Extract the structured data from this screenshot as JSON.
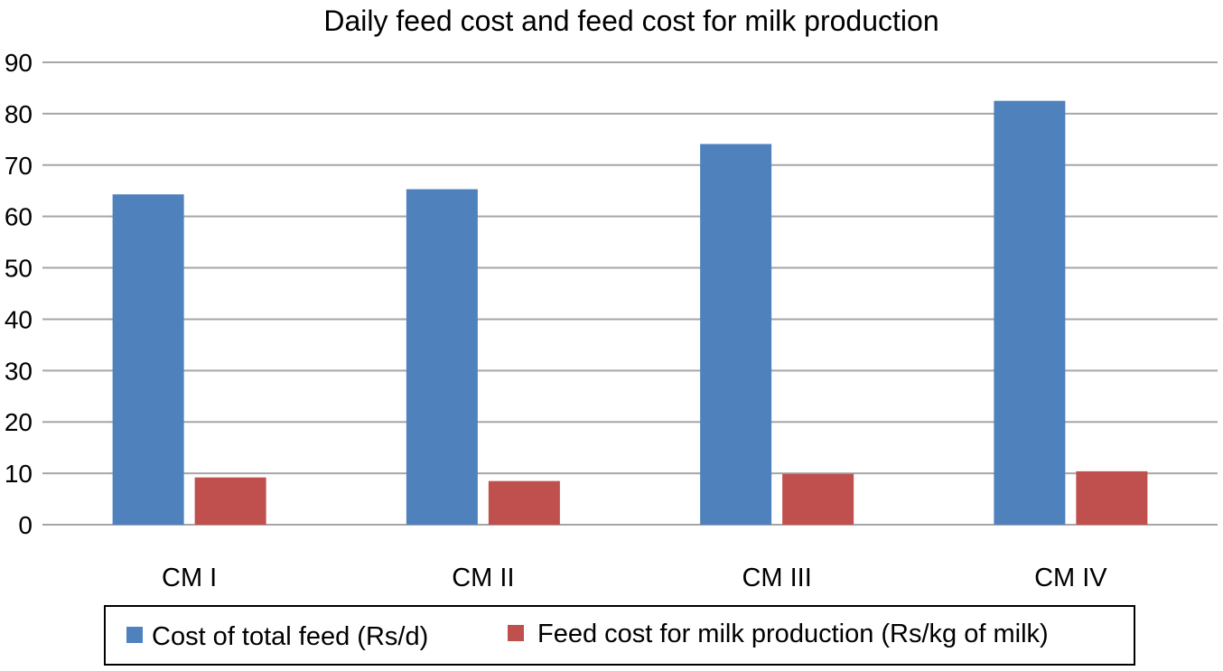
{
  "chart_data": {
    "type": "bar",
    "title": "Daily feed cost and feed cost for milk production",
    "xlabel": "",
    "ylabel": "",
    "categories": [
      "CM I",
      "CM II",
      "CM III",
      "CM IV"
    ],
    "series": [
      {
        "name": "Cost of total feed (Rs/d)",
        "values": [
          64.3,
          65.3,
          74.1,
          82.5
        ],
        "color": "#4F81BD"
      },
      {
        "name": "Feed cost for milk production (Rs/kg of milk)",
        "values": [
          9.2,
          8.5,
          9.9,
          10.4
        ],
        "color": "#C0504D"
      }
    ],
    "ylim": [
      0,
      90
    ],
    "yticks": [
      "0",
      "10",
      "20",
      "30",
      "40",
      "50",
      "60",
      "70",
      "80",
      "90"
    ],
    "grid": true,
    "legend_position": "bottom"
  },
  "colors": {
    "gridline": "#A6A6A6",
    "legend_border": "#000000"
  }
}
